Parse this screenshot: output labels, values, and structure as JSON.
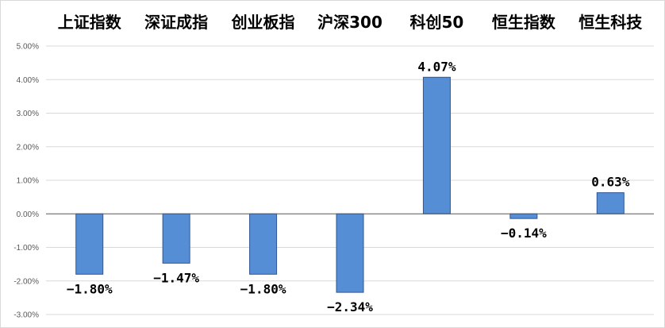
{
  "chart_data": {
    "type": "bar",
    "categories": [
      "上证指数",
      "深证成指",
      "创业板指",
      "沪深300",
      "科创50",
      "恒生指数",
      "恒生科技"
    ],
    "values": [
      -1.8,
      -1.47,
      -1.8,
      -2.34,
      4.07,
      -0.14,
      0.63
    ],
    "value_labels": [
      "−1.80%",
      "−1.47%",
      "−1.80%",
      "−2.34%",
      "4.07%",
      "−0.14%",
      "0.63%"
    ],
    "y_ticks": [
      5,
      4,
      3,
      2,
      1,
      0,
      -1,
      -2,
      -3
    ],
    "y_tick_labels": [
      "5.00%",
      "4.00%",
      "3.00%",
      "2.00%",
      "1.00%",
      "0.00%",
      "-1.00%",
      "-2.00%",
      "-3.00%"
    ],
    "ylim": [
      -3,
      5
    ],
    "grid": true,
    "legend": false,
    "category_labels_position": "top",
    "title": "",
    "xlabel": "",
    "ylabel": "",
    "colors": {
      "bar_fill": "#558ED5",
      "bar_stroke": "#2F5597",
      "grid": "#D9D9D9",
      "zero_line": "#595959",
      "text": "#000000",
      "tick_text": "#595959"
    }
  }
}
